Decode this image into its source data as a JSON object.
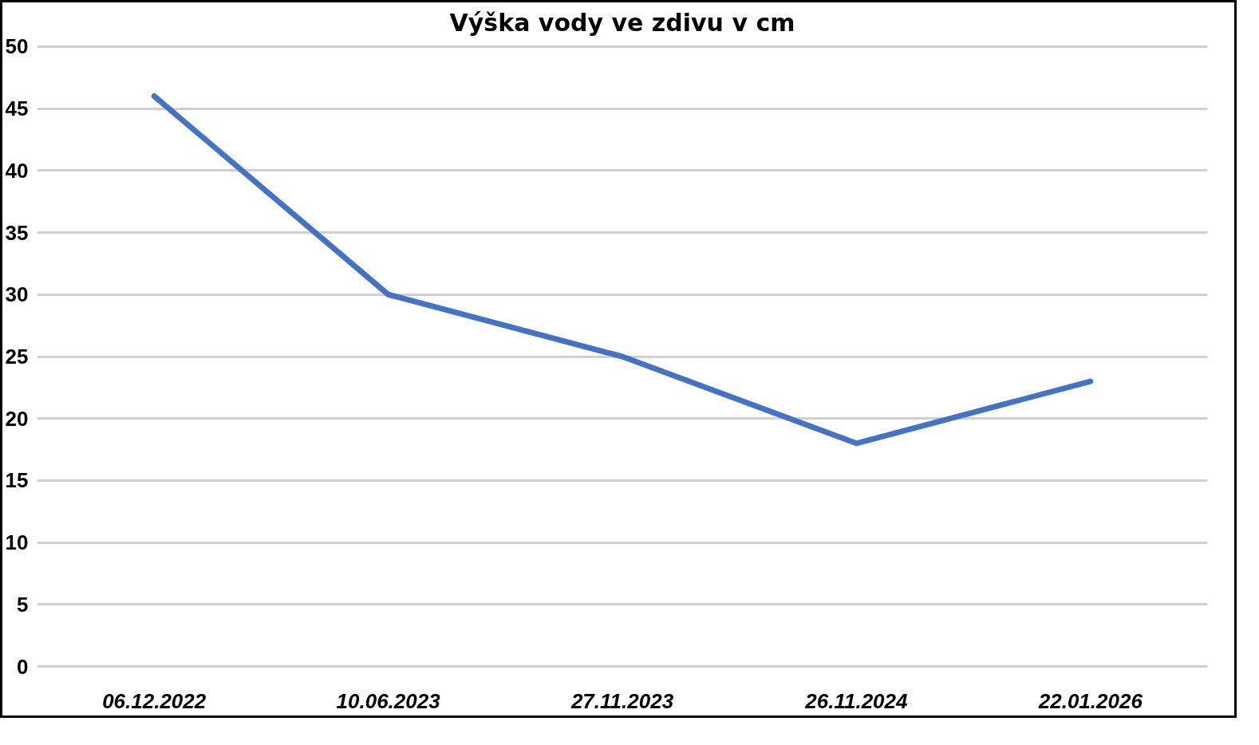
{
  "chart_data": {
    "type": "line",
    "title": "Výška vody ve zdivu v cm",
    "categories": [
      "06.12.2022",
      "10.06.2023",
      "27.11.2023",
      "26.11.2024",
      "22.01.2026"
    ],
    "series": [
      {
        "color": "#4472c4",
        "values": [
          46,
          30,
          25,
          18,
          23
        ]
      }
    ],
    "ylim": [
      0,
      50
    ],
    "yticks": [
      0,
      5,
      10,
      15,
      20,
      25,
      30,
      35,
      40,
      45,
      50
    ],
    "grid": "y",
    "marker": "none",
    "line_style": "solid"
  }
}
